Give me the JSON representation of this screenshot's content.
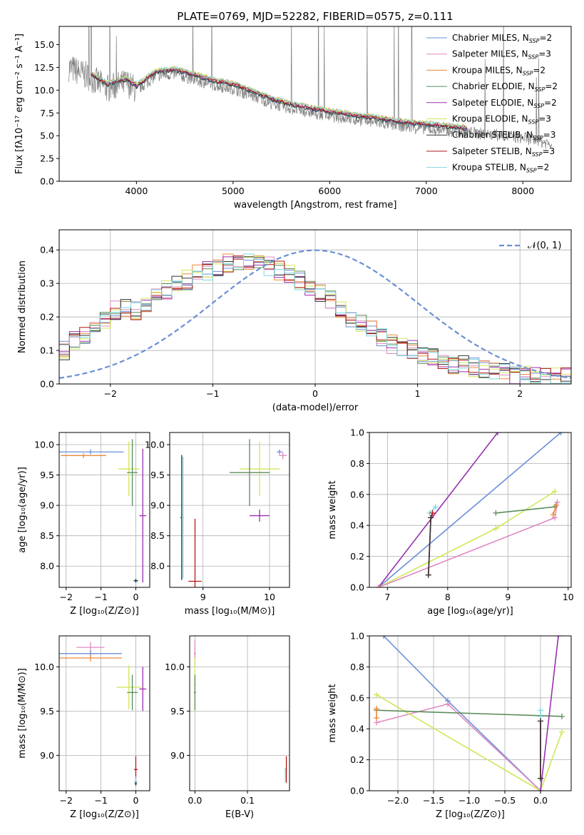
{
  "figure_title": "PLATE=0769, MJD=52282, FIBERID=0575, z=0.111",
  "colors": {
    "Chabrier MILES": "#6b8fd6",
    "Salpeter MILES": "#e08ac2",
    "Kroupa MILES": "#ec8a3c",
    "Chabrier ELODIE": "#5b8c5a",
    "Salpeter ELODIE": "#9a30b0",
    "Kroupa ELODIE": "#cfe85a",
    "Chabrier STELIB": "#333333",
    "Salpeter STELIB": "#b21818",
    "Kroupa STELIB": "#7fd8e0",
    "data": "#808080",
    "gaussian": "#6b8fd6"
  },
  "chart_data": [
    {
      "id": "spectrum",
      "type": "line",
      "title": "PLATE=0769, MJD=52282, FIBERID=0575, z=0.111",
      "xlabel": "wavelength [Angstrom, rest frame]",
      "ylabel": "Flux [fλ10⁻¹⁷ erg cm⁻² s⁻¹ A⁻¹]",
      "xlim": [
        3200,
        8500
      ],
      "ylim": [
        0,
        17
      ],
      "xticks": [
        4000,
        5000,
        6000,
        7000,
        8000
      ],
      "yticks": [
        0.0,
        2.5,
        5.0,
        7.5,
        10.0,
        12.5,
        15.0
      ],
      "legend_position": "top-right",
      "legend": [
        {
          "name": "Chabrier MILES",
          "nssp": "2"
        },
        {
          "name": "Salpeter MILES",
          "nssp": "3"
        },
        {
          "name": "Kroupa MILES",
          "nssp": "2"
        },
        {
          "name": "Chabrier ELODIE",
          "nssp": "2"
        },
        {
          "name": "Salpeter ELODIE",
          "nssp": "2"
        },
        {
          "name": "Kroupa ELODIE",
          "nssp": "3"
        },
        {
          "name": "Chabrier STELIB",
          "nssp": "3"
        },
        {
          "name": "Salpeter STELIB",
          "nssp": "3"
        },
        {
          "name": "Kroupa STELIB",
          "nssp": "2"
        }
      ],
      "continuum": [
        [
          3300,
          12.5
        ],
        [
          3500,
          11.5
        ],
        [
          3700,
          10.2
        ],
        [
          3900,
          10.8
        ],
        [
          4000,
          10.0
        ],
        [
          4200,
          11.6
        ],
        [
          4400,
          11.8
        ],
        [
          4600,
          11.2
        ],
        [
          4800,
          10.6
        ],
        [
          5000,
          10.2
        ],
        [
          5200,
          9.4
        ],
        [
          5400,
          8.6
        ],
        [
          5600,
          8.0
        ],
        [
          5800,
          7.6
        ],
        [
          6000,
          7.2
        ],
        [
          6200,
          6.9
        ],
        [
          6400,
          6.6
        ],
        [
          6600,
          6.3
        ],
        [
          6800,
          6.0
        ],
        [
          7000,
          5.8
        ],
        [
          7200,
          5.6
        ],
        [
          7400,
          5.4
        ],
        [
          7600,
          5.2
        ],
        [
          7800,
          5.0
        ],
        [
          8000,
          4.8
        ],
        [
          8300,
          4.1
        ]
      ],
      "data_range": [
        3300,
        8300
      ],
      "model_range": [
        3530,
        7420
      ]
    },
    {
      "id": "residuals",
      "type": "step",
      "xlabel": "(data-model)/error",
      "ylabel": "Normed distribution",
      "xlim": [
        -2.5,
        2.5
      ],
      "ylim": [
        0,
        0.46
      ],
      "xticks": [
        -2,
        -1,
        0,
        1,
        2
      ],
      "yticks": [
        0.0,
        0.1,
        0.2,
        0.3,
        0.4
      ],
      "legend_position": "top-right",
      "gaussian_label": "𝒩(0, 1)",
      "gaussian": {
        "mu": 0,
        "sigma": 1
      },
      "base_hist": [
        0.1,
        0.13,
        0.15,
        0.17,
        0.19,
        0.22,
        0.23,
        0.22,
        0.24,
        0.26,
        0.28,
        0.3,
        0.31,
        0.33,
        0.34,
        0.35,
        0.36,
        0.36,
        0.37,
        0.36,
        0.35,
        0.34,
        0.33,
        0.31,
        0.29,
        0.27,
        0.25,
        0.22,
        0.2,
        0.18,
        0.16,
        0.14,
        0.12,
        0.11,
        0.1,
        0.09,
        0.08,
        0.07,
        0.06,
        0.055,
        0.05,
        0.045,
        0.04,
        0.035,
        0.03,
        0.028,
        0.025,
        0.022,
        0.02,
        0.018
      ],
      "bin_start": -2.5,
      "bin_width": 0.1
    },
    {
      "id": "age-vs-Z",
      "type": "errorbar",
      "xlabel": "Z [log₁₀(Z/Z⊙)]",
      "ylabel": "age  [log₁₀(age/yr)]",
      "xlim": [
        -2.2,
        0.4
      ],
      "ylim": [
        7.65,
        10.2
      ],
      "xticks": [
        -2,
        -1,
        0
      ],
      "yticks": [
        8.0,
        8.5,
        9.0,
        9.5,
        10.0
      ],
      "points": [
        {
          "series": "Chabrier MILES",
          "x": -1.3,
          "y": 9.88,
          "xerr": 0.95,
          "yerr": 0.04
        },
        {
          "series": "Kroupa MILES",
          "x": -1.5,
          "y": 9.82,
          "xerr": 0.65,
          "yerr": 0.04
        },
        {
          "series": "Kroupa ELODIE",
          "x": -0.2,
          "y": 9.6,
          "xerr": 0.3,
          "yerr": 0.45
        },
        {
          "series": "Chabrier ELODIE",
          "x": -0.1,
          "y": 9.54,
          "xerr": 0.15,
          "yerr": 0.55
        },
        {
          "series": "Salpeter ELODIE",
          "x": 0.2,
          "y": 8.83,
          "xerr": 0.1,
          "yerr": 1.1
        },
        {
          "series": "Kroupa STELIB",
          "x": 0.0,
          "y": 7.75,
          "xerr": 0.05,
          "yerr": 0.06
        },
        {
          "series": "Chabrier STELIB",
          "x": 0.0,
          "y": 7.76,
          "xerr": 0.06,
          "yerr": 0.03
        }
      ]
    },
    {
      "id": "age-vs-mass",
      "type": "errorbar",
      "xlabel": "mass [log₁₀(M/M⊙)]",
      "ylabel": "",
      "xlim": [
        8.5,
        10.3
      ],
      "ylim": [
        7.65,
        10.2
      ],
      "xticks": [
        9,
        10
      ],
      "yticks": [
        8.0,
        8.5,
        9.0,
        9.5,
        10.0
      ],
      "points": [
        {
          "series": "Chabrier MILES",
          "x": 10.15,
          "y": 9.88,
          "xerr": 0.04,
          "yerr": 0.04
        },
        {
          "series": "Salpeter MILES",
          "x": 10.2,
          "y": 9.82,
          "xerr": 0.06,
          "yerr": 0.06
        },
        {
          "series": "Kroupa ELODIE",
          "x": 9.85,
          "y": 9.6,
          "xerr": 0.3,
          "yerr": 0.45
        },
        {
          "series": "Chabrier ELODIE",
          "x": 9.7,
          "y": 9.54,
          "xerr": 0.3,
          "yerr": 0.55
        },
        {
          "series": "Salpeter ELODIE",
          "x": 9.85,
          "y": 8.83,
          "xerr": 0.15,
          "yerr": 0.1
        },
        {
          "series": "Salpeter STELIB",
          "x": 8.88,
          "y": 7.75,
          "xerr": 0.1,
          "yerr": 1.03
        },
        {
          "series": "Chabrier STELIB",
          "x": 8.68,
          "y": 8.8,
          "xerr": 0.02,
          "yerr": 1.03
        },
        {
          "series": "Kroupa STELIB",
          "x": 8.7,
          "y": 8.8,
          "xerr": 0.02,
          "yerr": 1.0
        }
      ]
    },
    {
      "id": "massweight-vs-age",
      "type": "line",
      "xlabel": "age  [log₁₀(age/yr)]",
      "ylabel": "mass weight",
      "xlim": [
        6.7,
        10.05
      ],
      "ylim": [
        0,
        1.0
      ],
      "xticks": [
        7,
        8,
        9,
        10
      ],
      "yticks": [
        0.0,
        0.2,
        0.4,
        0.6,
        0.8,
        1.0
      ],
      "series": [
        {
          "name": "Chabrier MILES",
          "points": [
            [
              6.85,
              0
            ],
            [
              9.88,
              1.0
            ]
          ]
        },
        {
          "name": "Salpeter ELODIE",
          "points": [
            [
              6.85,
              0
            ],
            [
              8.83,
              1.0
            ]
          ]
        },
        {
          "name": "Kroupa ELODIE",
          "points": [
            [
              6.85,
              0
            ],
            [
              8.8,
              0.38
            ],
            [
              9.78,
              0.62
            ]
          ]
        },
        {
          "name": "Salpeter MILES",
          "points": [
            [
              6.85,
              0
            ],
            [
              9.78,
              0.45
            ],
            [
              9.82,
              0.55
            ]
          ]
        },
        {
          "name": "Chabrier ELODIE",
          "points": [
            [
              8.8,
              0.48
            ],
            [
              9.78,
              0.52
            ]
          ]
        },
        {
          "name": "Kroupa MILES",
          "points": [
            [
              9.75,
              0.47
            ],
            [
              9.8,
              0.53
            ]
          ]
        },
        {
          "name": "Kroupa STELIB",
          "points": [
            [
              7.7,
              0.48
            ],
            [
              7.8,
              0.52
            ]
          ]
        },
        {
          "name": "Salpeter STELIB",
          "points": [
            [
              7.68,
              0.08
            ],
            [
              7.72,
              0.45
            ],
            [
              7.75,
              0.48
            ]
          ]
        },
        {
          "name": "Chabrier STELIB",
          "points": [
            [
              7.68,
              0.08
            ],
            [
              7.72,
              0.45
            ]
          ]
        }
      ]
    },
    {
      "id": "mass-vs-Z",
      "type": "errorbar",
      "xlabel": "Z [log₁₀(Z/Z⊙)]",
      "ylabel": "mass [log₁₀(M/M⊙)]",
      "xlim": [
        -2.2,
        0.4
      ],
      "ylim": [
        8.6,
        10.35
      ],
      "xticks": [
        -2,
        -1,
        0
      ],
      "yticks": [
        9.0,
        9.5,
        10.0
      ],
      "points": [
        {
          "series": "Salpeter MILES",
          "x": -1.3,
          "y": 10.22,
          "xerr": 0.4,
          "yerr": 0.06
        },
        {
          "series": "Chabrier MILES",
          "x": -1.3,
          "y": 10.15,
          "xerr": 0.9,
          "yerr": 0.04
        },
        {
          "series": "Kroupa MILES",
          "x": -1.3,
          "y": 10.1,
          "xerr": 0.9,
          "yerr": 0.04
        },
        {
          "series": "Kroupa ELODIE",
          "x": -0.2,
          "y": 9.77,
          "xerr": 0.35,
          "yerr": 0.25
        },
        {
          "series": "Chabrier ELODIE",
          "x": -0.1,
          "y": 9.71,
          "xerr": 0.15,
          "yerr": 0.2
        },
        {
          "series": "Salpeter ELODIE",
          "x": 0.2,
          "y": 9.75,
          "xerr": 0.1,
          "yerr": 0.25
        },
        {
          "series": "Salpeter STELIB",
          "x": 0.0,
          "y": 8.84,
          "xerr": 0.05,
          "yerr": 0.15
        },
        {
          "series": "Kroupa STELIB",
          "x": 0.0,
          "y": 8.7,
          "xerr": 0.05,
          "yerr": 0.06
        },
        {
          "series": "Chabrier STELIB",
          "x": 0.0,
          "y": 8.68,
          "xerr": 0.03,
          "yerr": 0.02
        }
      ]
    },
    {
      "id": "mass-vs-EBV",
      "type": "errorbar",
      "xlabel": "E(B-V)",
      "ylabel": "",
      "xlim": [
        -0.01,
        0.18
      ],
      "ylim": [
        8.6,
        10.35
      ],
      "xticks": [
        0.0,
        0.1
      ],
      "yticks": [
        9.0,
        9.5,
        10.0
      ],
      "points": [
        {
          "series": "Salpeter MILES",
          "x": 0.0,
          "y": 10.15,
          "xerr": 0.002,
          "yerr": 0.15
        },
        {
          "series": "Kroupa ELODIE",
          "x": 0.0,
          "y": 9.8,
          "xerr": 0.002,
          "yerr": 0.3
        },
        {
          "series": "Chabrier ELODIE",
          "x": 0.0,
          "y": 9.71,
          "xerr": 0.002,
          "yerr": 0.2
        },
        {
          "series": "Salpeter STELIB",
          "x": 0.174,
          "y": 8.84,
          "xerr": 0.001,
          "yerr": 0.15
        },
        {
          "series": "Kroupa STELIB",
          "x": 0.172,
          "y": 8.78,
          "xerr": 0.001,
          "yerr": 0.08
        }
      ]
    },
    {
      "id": "massweight-vs-Z",
      "type": "line",
      "xlabel": "Z [log₁₀(Z/Z⊙)]",
      "ylabel": "mass weight",
      "xlim": [
        -2.4,
        0.43
      ],
      "ylim": [
        0,
        1.0
      ],
      "xticks": [
        -2.0,
        -1.5,
        -1.0,
        -0.5,
        0.0
      ],
      "yticks": [
        0.0,
        0.2,
        0.4,
        0.6,
        0.8,
        1.0
      ],
      "series": [
        {
          "name": "Chabrier MILES",
          "points": [
            [
              -2.2,
              1.0
            ],
            [
              -1.3,
              0.58
            ],
            [
              0.0,
              0.0
            ]
          ]
        },
        {
          "name": "Salpeter MILES",
          "points": [
            [
              -2.3,
              0.44
            ],
            [
              -1.3,
              0.56
            ],
            [
              0.0,
              0.0
            ]
          ]
        },
        {
          "name": "Kroupa ELODIE",
          "points": [
            [
              -2.3,
              0.62
            ],
            [
              0.0,
              0.0
            ],
            [
              0.3,
              0.38
            ]
          ]
        },
        {
          "name": "Chabrier ELODIE",
          "points": [
            [
              -2.3,
              0.52
            ],
            [
              0.3,
              0.48
            ]
          ]
        },
        {
          "name": "Salpeter ELODIE",
          "points": [
            [
              0.0,
              0.0
            ],
            [
              0.25,
              1.0
            ]
          ]
        },
        {
          "name": "Kroupa MILES",
          "points": [
            [
              -2.3,
              0.47
            ],
            [
              -2.3,
              0.53
            ]
          ]
        },
        {
          "name": "Kroupa STELIB",
          "points": [
            [
              0.0,
              0.48
            ],
            [
              0.0,
              0.52
            ]
          ]
        },
        {
          "name": "Salpeter STELIB",
          "points": [
            [
              0.0,
              0.08
            ],
            [
              0.0,
              0.45
            ]
          ]
        },
        {
          "name": "Chabrier STELIB",
          "points": [
            [
              0.0,
              0.08
            ],
            [
              0.0,
              0.45
            ]
          ]
        }
      ]
    }
  ]
}
